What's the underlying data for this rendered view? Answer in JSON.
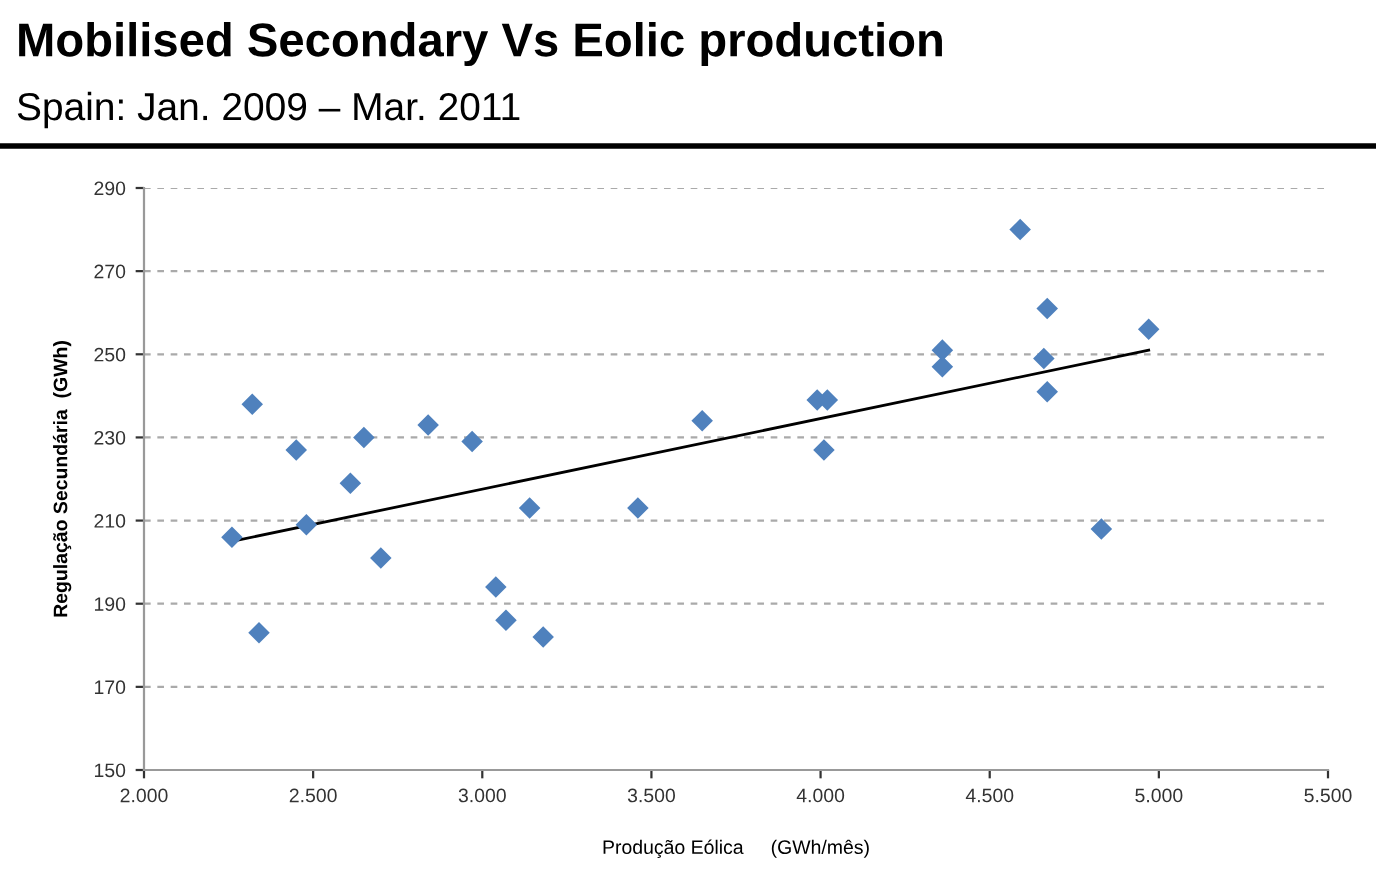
{
  "chart_data": {
    "type": "scatter",
    "title": "Mobilised Secondary Vs Eolic production",
    "subtitle": "Spain: Jan. 2009 – Mar. 2011",
    "xlabel": "Produção Eólica     (GWh/mês)",
    "ylabel": "Regulação Secundária  (GWh)",
    "series": [
      {
        "color": "#4f81bd",
        "marker": "diamond",
        "x": [
          2260,
          2320,
          2340,
          2450,
          2480,
          2610,
          2650,
          2700,
          2840,
          2970,
          3040,
          3070,
          3140,
          3180,
          3460,
          3650,
          3990,
          4020,
          4010,
          4360,
          4360,
          4590,
          4670,
          4660,
          4670,
          4830,
          4970
        ],
        "values": [
          206,
          238,
          183,
          227,
          209,
          219,
          230,
          201,
          233,
          229,
          194,
          186,
          213,
          182,
          213,
          234,
          239,
          239,
          227,
          247,
          251,
          280,
          261,
          249,
          241,
          208,
          256
        ]
      },
      {
        "type": "line",
        "color": "#000000",
        "marker": "none",
        "x": [
          2260,
          4970
        ],
        "values": [
          205,
          251
        ]
      }
    ],
    "xlim": [
      2000,
      5500
    ],
    "xticks": [
      {
        "value": 2000,
        "label": "2.000"
      },
      {
        "value": 2500,
        "label": "2.500"
      },
      {
        "value": 3000,
        "label": "3.000"
      },
      {
        "value": 3500,
        "label": "3.500"
      },
      {
        "value": 4000,
        "label": "4.000"
      },
      {
        "value": 4500,
        "label": "4.500"
      },
      {
        "value": 5000,
        "label": "5.000"
      },
      {
        "value": 5500,
        "label": "5.500"
      }
    ],
    "ylim": [
      150,
      290
    ],
    "yticks": [
      150,
      170,
      190,
      210,
      230,
      250,
      270,
      290
    ],
    "grid": "y"
  }
}
